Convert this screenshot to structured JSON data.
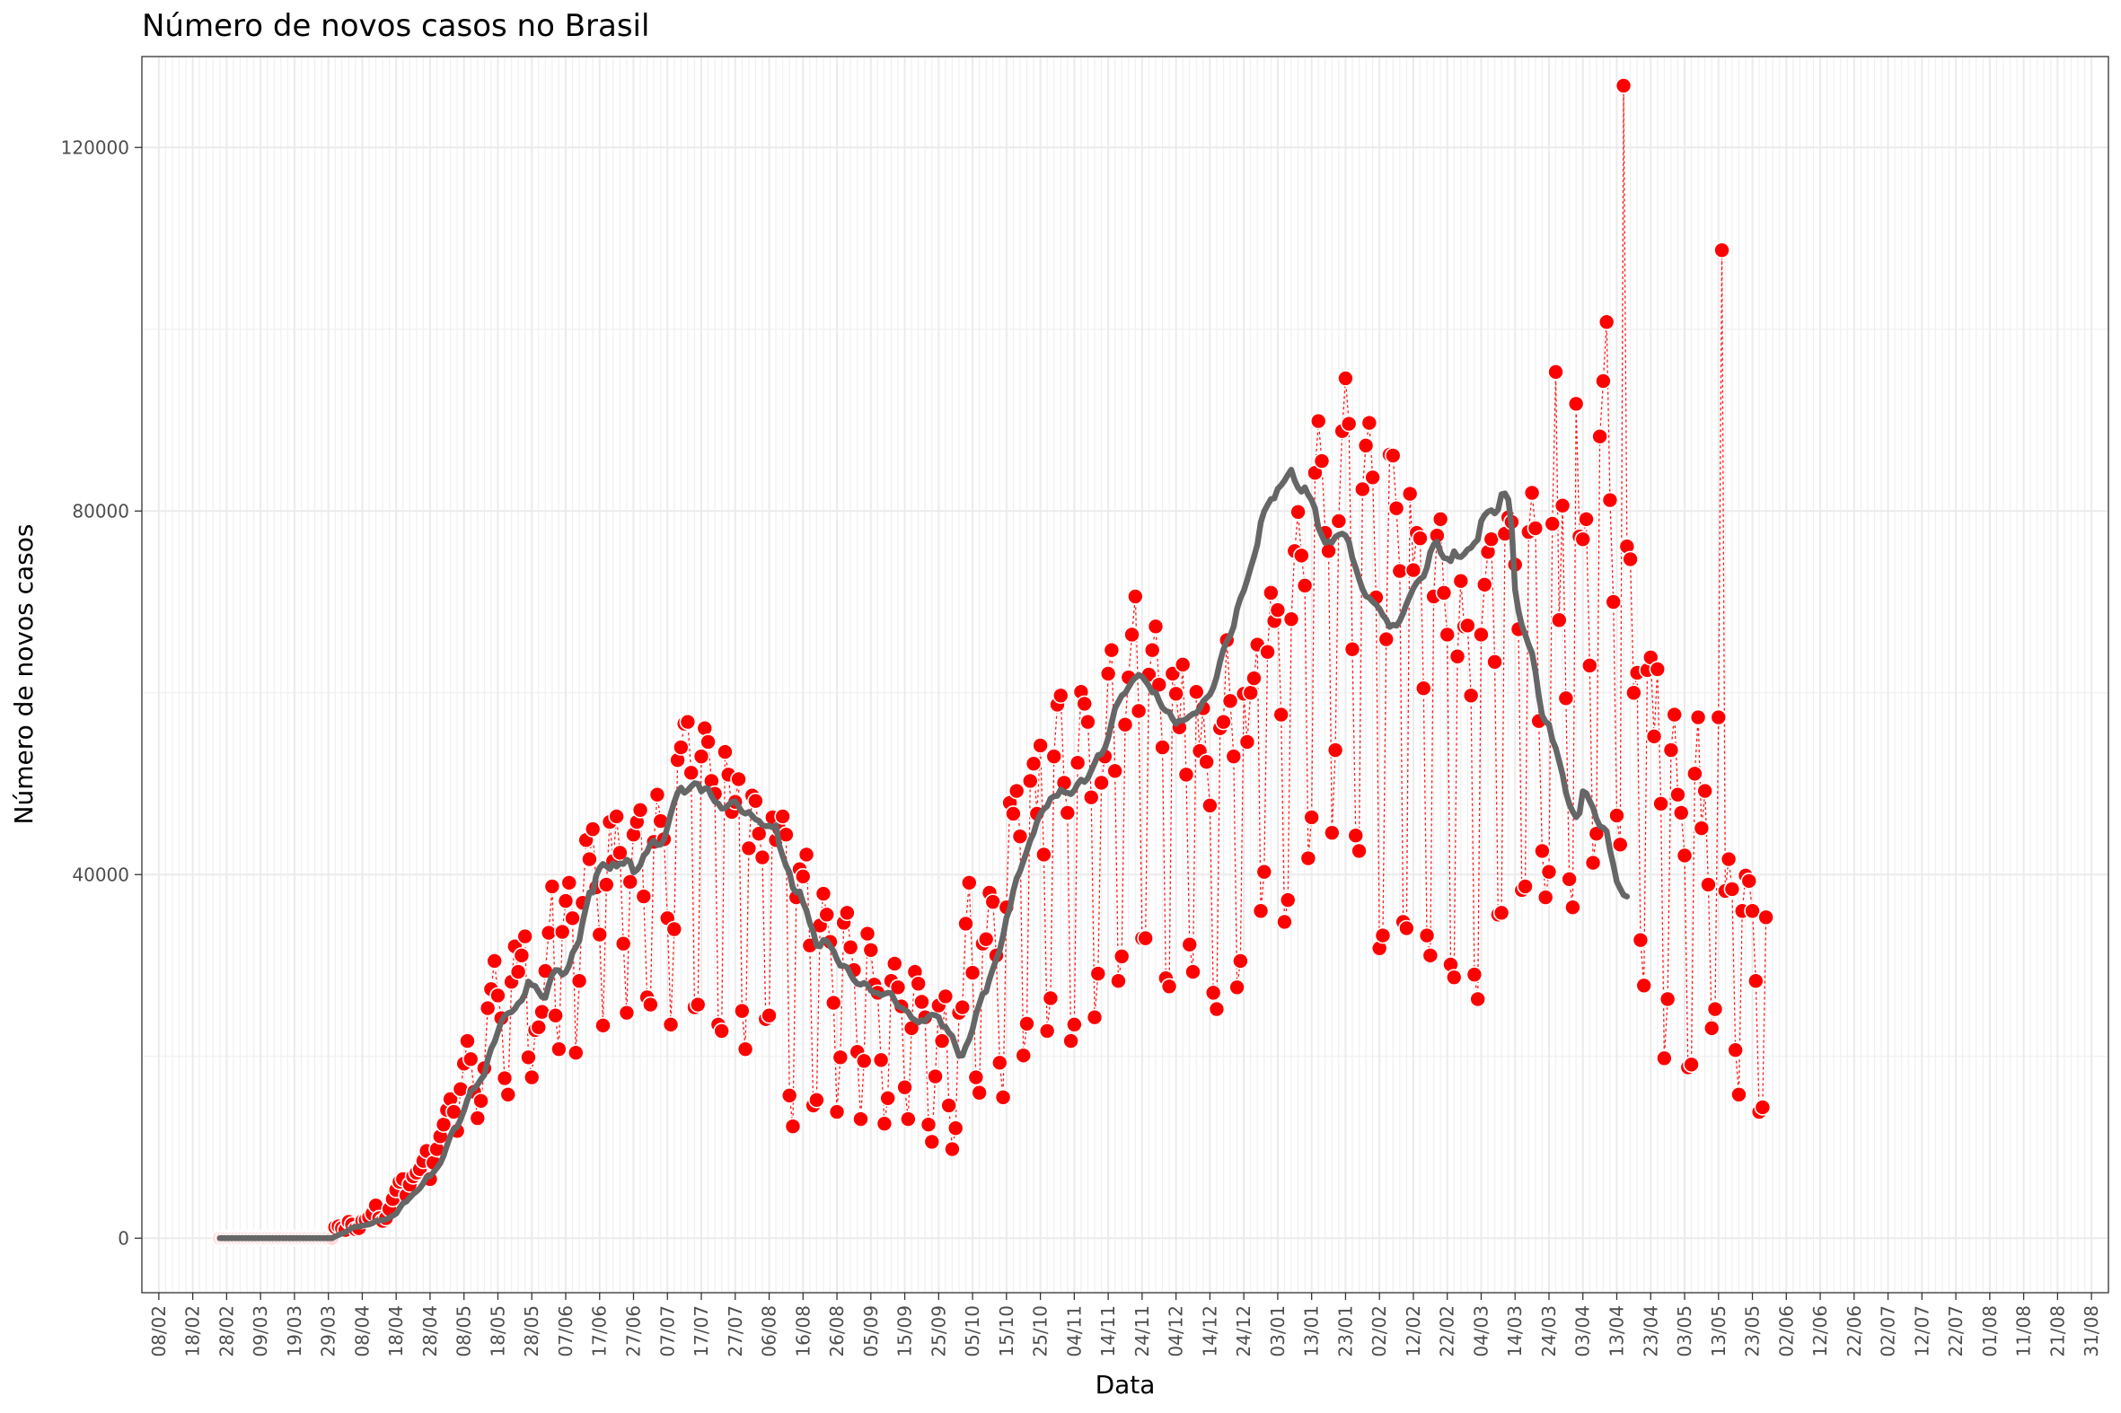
{
  "chart_data": {
    "type": "scatter",
    "title": "Número de novos casos no Brasil",
    "xlabel": "Data",
    "ylabel": "Número de novos casos",
    "x_start": "2020-02-26",
    "xlim": [
      "2020-02-03",
      "2021-09-05"
    ],
    "ylim": [
      -6000,
      130000
    ],
    "y_ticks": [
      0,
      40000,
      80000,
      120000
    ],
    "y_tick_labels": [
      "0",
      "40000",
      "80000",
      "120000"
    ],
    "x_ticks": [
      "2020-02-08",
      "2020-02-18",
      "2020-02-28",
      "2020-03-09",
      "2020-03-19",
      "2020-03-29",
      "2020-04-08",
      "2020-04-18",
      "2020-04-28",
      "2020-05-08",
      "2020-05-18",
      "2020-05-28",
      "2020-06-07",
      "2020-06-17",
      "2020-06-27",
      "2020-07-07",
      "2020-07-17",
      "2020-07-27",
      "2020-08-06",
      "2020-08-16",
      "2020-08-26",
      "2020-09-05",
      "2020-09-15",
      "2020-09-25",
      "2020-10-05",
      "2020-10-15",
      "2020-10-25",
      "2020-11-04",
      "2020-11-14",
      "2020-11-24",
      "2020-12-04",
      "2020-12-14",
      "2020-12-24",
      "2021-01-03",
      "2021-01-13",
      "2021-01-23",
      "2021-02-02",
      "2021-02-12",
      "2021-02-22",
      "2021-03-04",
      "2021-03-14",
      "2021-03-24",
      "2021-04-03",
      "2021-04-13",
      "2021-04-23",
      "2021-05-03",
      "2021-05-13",
      "2021-05-23",
      "2021-06-02",
      "2021-06-12",
      "2021-06-22",
      "2021-07-02",
      "2021-07-12",
      "2021-07-22",
      "2021-08-01",
      "2021-08-11",
      "2021-08-21",
      "2021-08-31"
    ],
    "x_tick_labels": [
      "08/02",
      "18/02",
      "28/02",
      "09/03",
      "19/03",
      "29/03",
      "08/04",
      "18/04",
      "28/04",
      "08/05",
      "18/05",
      "28/05",
      "07/06",
      "17/06",
      "27/06",
      "07/07",
      "17/07",
      "27/07",
      "06/08",
      "16/08",
      "26/08",
      "05/09",
      "15/09",
      "25/09",
      "05/10",
      "15/10",
      "25/10",
      "04/11",
      "14/11",
      "24/11",
      "04/12",
      "14/12",
      "24/12",
      "03/01",
      "13/01",
      "23/01",
      "02/02",
      "12/02",
      "22/02",
      "04/03",
      "14/03",
      "24/03",
      "03/04",
      "13/04",
      "23/04",
      "03/05",
      "13/05",
      "23/05",
      "02/06",
      "12/06",
      "22/06",
      "02/07",
      "12/07",
      "22/07",
      "01/08",
      "11/08",
      "21/08",
      "31/08"
    ],
    "grid": true,
    "legend": "none",
    "series": [
      {
        "kind": "daily",
        "values": [
          0,
          0,
          0,
          0,
          0,
          0,
          0,
          0,
          0,
          0,
          0,
          0,
          0,
          0,
          0,
          0,
          0,
          0,
          0,
          0,
          0,
          0,
          0,
          0,
          0,
          0,
          0,
          0,
          0,
          0,
          0,
          0,
          0,
          0,
          1200,
          1300,
          1100,
          900,
          1800,
          1500,
          1000,
          1100,
          1900,
          2000,
          2300,
          2700,
          3600,
          2200,
          1900,
          2200,
          3200,
          4300,
          5300,
          6200,
          6500,
          4700,
          5900,
          6800,
          7200,
          7600,
          8500,
          9600,
          6500,
          8300,
          9800,
          11200,
          12500,
          14100,
          15300,
          13900,
          11800,
          16400,
          19200,
          21700,
          19700,
          16100,
          13200,
          15100,
          18700,
          25300,
          27400,
          30500,
          26700,
          24200,
          17600,
          15800,
          28200,
          32100,
          29300,
          31100,
          33200,
          19900,
          17700,
          22900,
          23200,
          24900,
          29400,
          33600,
          38700,
          24500,
          20800,
          33700,
          37100,
          39100,
          35200,
          20400,
          28300,
          36900,
          43800,
          41700,
          45000,
          38600,
          33400,
          23400,
          38900,
          45800,
          41500,
          46400,
          42400,
          32400,
          24800,
          39200,
          44400,
          45800,
          47100,
          37600,
          26500,
          25700,
          43600,
          48800,
          45900,
          43900,
          35200,
          23500,
          34000,
          52600,
          54000,
          56600,
          56800,
          51200,
          25400,
          25700,
          53000,
          56100,
          54600,
          50300,
          48900,
          23500,
          22800,
          53500,
          51000,
          46900,
          48000,
          50500,
          25000,
          20800,
          42900,
          48700,
          48100,
          44500,
          41900,
          24100,
          24500,
          46300,
          43800,
          45000,
          46400,
          44400,
          15700,
          12300,
          37500,
          40600,
          39800,
          42200,
          32200,
          14600,
          15200,
          34400,
          37900,
          35600,
          32600,
          25900,
          13900,
          19900,
          34700,
          35800,
          32000,
          29500,
          20500,
          13100,
          19500,
          33500,
          31700,
          27900,
          27000,
          19600,
          12600,
          15400,
          28300,
          30200,
          27600,
          25500,
          16600,
          13100,
          23100,
          29300,
          28000,
          26000,
          24300,
          12500,
          10600,
          17800,
          25600,
          21700,
          26600,
          14600,
          9800,
          12100,
          24800,
          25400,
          34600,
          39100,
          29200,
          17700,
          16000,
          32400,
          32900,
          38000,
          37000,
          31100,
          19300,
          15500,
          36400,
          47900,
          46700,
          49200,
          44200,
          20100,
          23600,
          50300,
          52200,
          46700,
          54200,
          42200,
          22800,
          26400,
          53000,
          58700,
          59700,
          50100,
          46800,
          21700,
          23500,
          52300,
          60100,
          58800,
          56800,
          48500,
          24300,
          29100,
          50100,
          53000,
          62100,
          64700,
          51400,
          28300,
          31000,
          56500,
          61700,
          66400,
          70600,
          58000,
          33000,
          33000,
          62000,
          64700,
          67300,
          60900,
          54000,
          28600,
          27700,
          62100,
          59900,
          56200,
          63100,
          51000,
          32300,
          29300,
          60100,
          53600,
          58300,
          52400,
          47600,
          27000,
          25200,
          56100,
          56800,
          65800,
          59100,
          53000,
          27600,
          30500,
          59900,
          54600,
          60000,
          61600,
          65300,
          36000,
          40300,
          64500,
          71000,
          67900,
          69100,
          57600,
          34800,
          37200,
          68100,
          75600,
          79900,
          75100,
          71800,
          41800,
          46300,
          84200,
          89900,
          85500,
          77600,
          75600,
          44600,
          53700,
          78900,
          88800,
          94600,
          89600,
          64800,
          44300,
          42600,
          82400,
          87200,
          89700,
          83700,
          70500,
          31900,
          33300,
          65900,
          86200,
          86100,
          80300,
          73400,
          34800,
          34100,
          81900,
          73500,
          77600,
          77000,
          60500,
          33300,
          31100,
          70600,
          77300,
          79100,
          71000,
          66400,
          30100,
          28700,
          64000,
          72300,
          67300,
          67400,
          59700,
          29000,
          26300,
          66400,
          71900,
          75500,
          76900,
          63400,
          35600,
          35800,
          77500,
          79300,
          78800,
          74100,
          67000,
          38300,
          38700,
          77700,
          82000,
          78100,
          56900,
          42600,
          37500,
          40300,
          78600,
          95300,
          68000,
          80600,
          59400,
          39500,
          36400,
          91800,
          77200,
          76900,
          79100,
          63000,
          41300,
          44500,
          88200,
          94300,
          100800,
          81200,
          70000,
          46500,
          43300,
          126800,
          76100,
          74700,
          60000,
          62200,
          32800,
          27800,
          62500,
          63900,
          55200,
          62600,
          47800,
          19800,
          26300,
          53700,
          57600,
          48800,
          46800,
          42100,
          18800,
          19100,
          51100,
          57300,
          45100,
          49200,
          38900,
          23100,
          25200,
          57300,
          108700,
          38200,
          41700,
          38400,
          20700,
          15800,
          36000,
          39900,
          39300,
          36000,
          28300,
          13900,
          14400,
          35300
        ]
      },
      {
        "kind": "rolling-mean-7d",
        "values": [
          0,
          0,
          0,
          0,
          0,
          0,
          0,
          0,
          0,
          0,
          0,
          0,
          0,
          0,
          0,
          0,
          0,
          0,
          0,
          0,
          0,
          0,
          0,
          0,
          0,
          0,
          0,
          0,
          0,
          0,
          0,
          0,
          0,
          0,
          172,
          356,
          512,
          645,
          903,
          1117,
          1257,
          1271,
          1357,
          1443,
          1514,
          1643,
          1900,
          1929,
          1987,
          2057,
          2243,
          2471,
          2700,
          3314,
          3843,
          4029,
          4457,
          4857,
          5143,
          5500,
          6043,
          6743,
          6843,
          7243,
          7714,
          8243,
          9086,
          10214,
          11271,
          12014,
          12243,
          13071,
          14043,
          15233,
          16147,
          16451,
          16886,
          17471,
          17957,
          19614,
          20857,
          21571,
          22714,
          23843,
          24457,
          24757,
          24871,
          25243,
          25833,
          26147,
          26886,
          28229,
          27843,
          27743,
          27114,
          26529,
          26447,
          27857,
          29000,
          29500,
          29471,
          28986,
          29243,
          29986,
          31371,
          32014,
          32729,
          34829,
          36400,
          38033,
          38029,
          39900,
          40729,
          41171,
          40914,
          40614,
          41257,
          40871,
          41243,
          41171,
          41643,
          41400,
          40229,
          40514,
          41057,
          42086,
          42500,
          43386,
          43757,
          43243,
          43300,
          43871,
          45243,
          46700,
          47957,
          49014,
          49567,
          49000,
          49279,
          49707,
          50057,
          49986,
          49136,
          49471,
          49471,
          48657,
          48021,
          47829,
          47257,
          47307,
          47671,
          47993,
          48071,
          47486,
          46893,
          46707,
          46886,
          46457,
          46067,
          45907,
          45436,
          45314,
          45393,
          45200,
          45436,
          43186,
          42057,
          40957,
          40221,
          38521,
          38031,
          38150,
          36921,
          36050,
          34671,
          33757,
          32186,
          32100,
          32807,
          32729,
          32143,
          31586,
          30686,
          29979,
          29979,
          29807,
          29036,
          28414,
          28000,
          27886,
          28086,
          27871,
          27243,
          27000,
          26957,
          26700,
          26871,
          27000,
          26957,
          26200,
          25514,
          25343,
          25129,
          24886,
          24243,
          24000,
          23729,
          23971,
          23871,
          24429,
          24600,
          24514,
          24329,
          23343,
          23243,
          22614,
          22243,
          21143,
          20057,
          20100,
          21100,
          21857,
          23000,
          24671,
          25757,
          26900,
          27114,
          28543,
          29629,
          30700,
          31671,
          33271,
          35243,
          36286,
          38186,
          39600,
          40357,
          41486,
          42571,
          43771,
          44557,
          45814,
          46671,
          47214,
          47529,
          48357,
          48614,
          48671,
          49371,
          49057,
          49000,
          48857,
          49257,
          49971,
          50443,
          50200,
          50600,
          51443,
          52271,
          53143,
          53243,
          53871,
          55014,
          56671,
          58286,
          58986,
          59700,
          59957,
          60614,
          61271,
          61671,
          61971,
          61786,
          61286,
          60771,
          60043,
          60057,
          59114,
          58357,
          58014,
          57886,
          57129,
          56586,
          56957,
          56957,
          57114,
          57429,
          57686,
          57786,
          58257,
          59057,
          59443,
          59800,
          60586,
          61743,
          63443,
          64771,
          65714,
          66286,
          67271,
          69243,
          70414,
          71243,
          72414,
          73743,
          74957,
          76343,
          78743,
          79957,
          80671,
          81314,
          81386,
          82443,
          82843,
          83343,
          83971,
          84543,
          83343,
          82557,
          82129,
          82600,
          81771,
          81186,
          80286,
          78157,
          77314,
          76486,
          76671,
          76529,
          77157,
          77386,
          77514,
          77300,
          76600,
          74843,
          73757,
          72529,
          71414,
          70643,
          70443,
          70043,
          69700,
          69243,
          68543,
          68086,
          67257,
          67486,
          67386,
          67914,
          68757,
          69800,
          70671,
          71500,
          72114,
          72514,
          72786,
          73786,
          75471,
          76300,
          76643,
          75443,
          74843,
          74757,
          74486,
          75571,
          75000,
          74929,
          75271,
          75771,
          75957,
          76471,
          76843,
          78886,
          79529,
          79929,
          80086,
          79743,
          80143,
          81829,
          81929,
          81257,
          78257,
          71386,
          69014,
          67400,
          66371,
          65300,
          64371,
          62329,
          59600,
          57500,
          56800,
          56529,
          54800,
          53929,
          52486,
          51014,
          49014,
          47771,
          46943,
          46314,
          46771,
          49157,
          48943,
          48114,
          47343,
          46129,
          45329,
          45157,
          44771,
          42714,
          41071,
          39229,
          38457,
          37757,
          37586
        ]
      }
    ]
  }
}
